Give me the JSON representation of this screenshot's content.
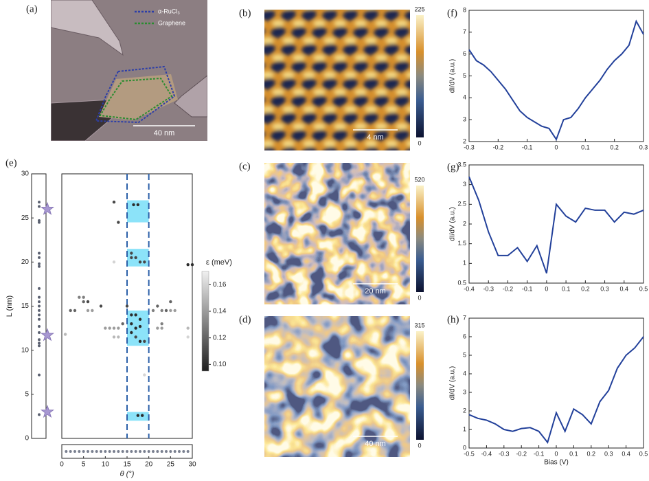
{
  "chart_data": [
    {
      "type": "image",
      "label": "(a)",
      "legend": [
        "α-RuCl₃",
        "Graphene"
      ],
      "scale_bar": "40 nm"
    },
    {
      "type": "image",
      "label": "(b)",
      "scale_bar": "4 nm",
      "colorbar_ticks": [
        0,
        225
      ]
    },
    {
      "type": "image",
      "label": "(c)",
      "scale_bar": "20 nm",
      "colorbar_ticks": [
        0,
        520
      ]
    },
    {
      "type": "image",
      "label": "(d)",
      "scale_bar": "40 nm",
      "colorbar_ticks": [
        0,
        315
      ]
    },
    {
      "type": "scatter",
      "label": "(e)",
      "xlabel": "θ (°)",
      "ylabel": "L (nm)",
      "xlim": [
        0,
        30
      ],
      "ylim": [
        0,
        30
      ],
      "xticks": [
        0,
        5,
        10,
        15,
        20,
        25,
        30
      ],
      "yticks": [
        0,
        5,
        10,
        15,
        20,
        25,
        30
      ],
      "x": [
        12,
        13,
        16.5,
        17.5,
        12,
        16,
        17,
        18,
        19,
        16,
        29,
        30,
        4,
        5,
        5,
        6,
        0.8,
        2,
        3,
        6,
        7,
        9,
        10,
        11,
        12,
        13,
        12,
        13,
        14,
        15,
        16,
        17,
        16,
        17,
        18,
        17,
        18,
        19,
        16,
        18,
        21,
        22,
        23,
        24,
        25,
        25,
        26,
        22,
        23,
        23,
        29,
        29,
        19,
        17.5,
        18.5
      ],
      "values": [
        26.8,
        24.5,
        26.5,
        26.5,
        20,
        20.5,
        20.5,
        20,
        20,
        21,
        19.7,
        19.7,
        16,
        16,
        15.5,
        15.5,
        11.8,
        14.5,
        14.5,
        14.5,
        14.5,
        15,
        12.5,
        12.5,
        12.5,
        12.5,
        11.5,
        11.5,
        13,
        15,
        14,
        14,
        13,
        12.5,
        12.7,
        11.5,
        11,
        11,
        12,
        13.5,
        14.5,
        15,
        14.5,
        14.5,
        15.5,
        14.5,
        14.5,
        12.5,
        12.5,
        13,
        12.5,
        11.5,
        7.2,
        2.6,
        2.6
      ],
      "color_values": [
        0.11,
        0.11,
        0.1,
        0.1,
        0.16,
        0.11,
        0.11,
        0.11,
        0.11,
        0.11,
        0.1,
        0.1,
        0.13,
        0.13,
        0.12,
        0.11,
        0.15,
        0.12,
        0.12,
        0.14,
        0.14,
        0.11,
        0.14,
        0.14,
        0.14,
        0.14,
        0.15,
        0.15,
        0.12,
        0.11,
        0.1,
        0.1,
        0.1,
        0.1,
        0.1,
        0.11,
        0.1,
        0.11,
        0.1,
        0.1,
        0.13,
        0.12,
        0.13,
        0.12,
        0.12,
        0.14,
        0.14,
        0.14,
        0.14,
        0.13,
        0.15,
        0.16,
        0.16,
        0.1,
        0.1
      ],
      "highlight_theta": [
        15,
        20
      ],
      "highlight_L": [
        [
          2,
          3
        ],
        [
          10.5,
          14.5
        ],
        [
          19.5,
          21.5
        ],
        [
          24.5,
          27
        ]
      ],
      "strip_L": [
        26.8,
        26.3,
        24.7,
        24.5,
        21,
        20.5,
        19.8,
        19.5,
        17,
        16,
        15.5,
        15,
        14.5,
        14,
        13.5,
        12.7,
        12,
        11.2,
        10.8,
        10.5,
        7.2,
        2.7
      ],
      "star_L": [
        26,
        11.7,
        3
      ],
      "strip_theta": [
        1,
        2,
        3,
        4,
        5,
        6,
        7,
        8,
        9,
        10,
        11,
        12,
        13,
        14,
        15,
        16,
        17,
        18,
        19,
        20,
        21,
        22,
        23,
        24,
        25,
        26,
        27,
        28,
        29
      ],
      "colorbar_label": "ε (meV)",
      "colorbar_lim": [
        0.095,
        0.17
      ],
      "colorbar_ticks": [
        {
          "value": 0.1,
          "label": "0.10"
        },
        0.12,
        0.14,
        0.16
      ]
    },
    {
      "type": "line",
      "label": "(f)",
      "ylabel": "dI/dV (a.u.)",
      "color": "#22409a",
      "xlim": [
        -0.3,
        0.3
      ],
      "ylim": [
        2,
        8
      ],
      "xticks": [
        -0.3,
        -0.2,
        -0.1,
        0,
        0.1,
        0.2,
        0.3
      ],
      "yticks": [
        2,
        3,
        4,
        5,
        6,
        7,
        8
      ],
      "x": [
        -0.3,
        -0.275,
        -0.25,
        -0.225,
        -0.2,
        -0.175,
        -0.15,
        -0.125,
        -0.1,
        -0.075,
        -0.05,
        -0.025,
        0,
        0.025,
        0.05,
        0.075,
        0.1,
        0.125,
        0.15,
        0.175,
        0.2,
        0.225,
        0.25,
        0.275,
        0.3
      ],
      "values": [
        6.2,
        5.7,
        5.5,
        5.2,
        4.8,
        4.4,
        3.9,
        3.4,
        3.1,
        2.9,
        2.7,
        2.6,
        2.1,
        3.0,
        3.1,
        3.5,
        4.0,
        4.4,
        4.8,
        5.3,
        5.7,
        6.0,
        6.4,
        7.5,
        6.9
      ]
    },
    {
      "type": "line",
      "label": "(g)",
      "ylabel": "dI/dV (a.u.)",
      "color": "#22409a",
      "xlim": [
        -0.4,
        0.5
      ],
      "ylim": [
        0.5,
        3.5
      ],
      "xticks": [
        -0.4,
        -0.3,
        -0.2,
        -0.1,
        0,
        0.1,
        0.2,
        0.3,
        0.4,
        0.5
      ],
      "yticks": [
        0.5,
        1,
        1.5,
        2,
        2.5,
        3,
        3.5
      ],
      "x": [
        -0.4,
        -0.35,
        -0.3,
        -0.25,
        -0.2,
        -0.15,
        -0.1,
        -0.05,
        0,
        0.05,
        0.1,
        0.15,
        0.2,
        0.25,
        0.3,
        0.35,
        0.4,
        0.45,
        0.5
      ],
      "values": [
        3.2,
        2.6,
        1.8,
        1.2,
        1.2,
        1.4,
        1.05,
        1.45,
        0.75,
        2.5,
        2.2,
        2.05,
        2.4,
        2.35,
        2.35,
        2.05,
        2.3,
        2.25,
        2.35
      ]
    },
    {
      "type": "line",
      "label": "(h)",
      "ylabel": "dI/dV (a.u.)",
      "xlabel": "Bias (V)",
      "color": "#22409a",
      "xlim": [
        -0.5,
        0.5
      ],
      "ylim": [
        0,
        7
      ],
      "xticks": [
        -0.5,
        -0.4,
        -0.3,
        -0.2,
        -0.1,
        0,
        0.1,
        0.2,
        0.3,
        0.4,
        0.5
      ],
      "yticks": [
        0,
        1,
        2,
        3,
        4,
        5,
        6,
        7
      ],
      "x": [
        -0.5,
        -0.45,
        -0.4,
        -0.35,
        -0.3,
        -0.25,
        -0.2,
        -0.15,
        -0.1,
        -0.05,
        0,
        0.05,
        0.1,
        0.15,
        0.2,
        0.25,
        0.3,
        0.35,
        0.4,
        0.45,
        0.5
      ],
      "values": [
        1.8,
        1.6,
        1.5,
        1.3,
        1.0,
        0.9,
        1.05,
        1.1,
        0.9,
        0.3,
        1.9,
        0.9,
        2.1,
        1.8,
        1.3,
        2.5,
        3.1,
        4.3,
        5.0,
        5.4,
        6.0
      ]
    }
  ]
}
